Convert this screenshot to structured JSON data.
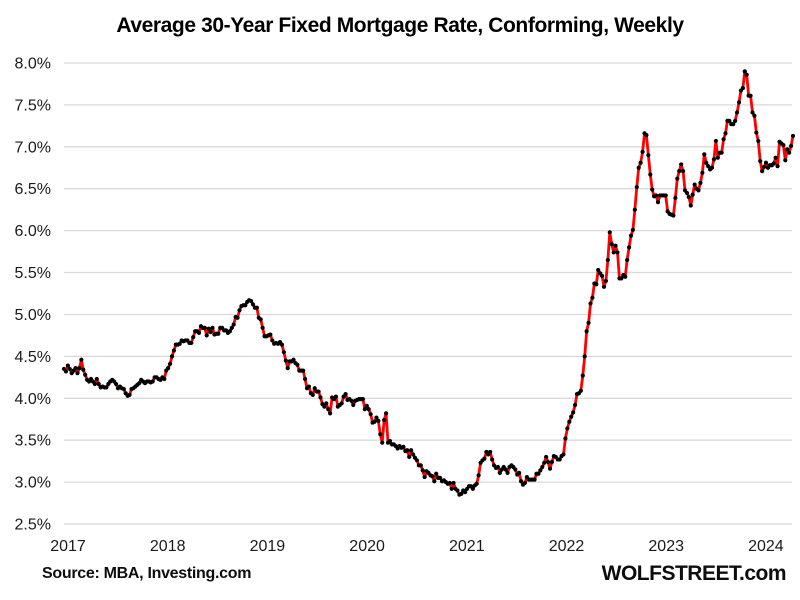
{
  "title": "Average 30-Year Fixed Mortgage Rate, Conforming, Weekly",
  "footer": {
    "source": "Source: MBA, Investing.com",
    "brand": "WOLFSTREET.com"
  },
  "chart_data": {
    "type": "line",
    "title": "Average 30-Year Fixed Mortgage Rate, Conforming, Weekly",
    "frequency": "weekly",
    "x_start_year": 2017,
    "x_tick_labels": [
      "2017",
      "2018",
      "2019",
      "2020",
      "2021",
      "2022",
      "2023",
      "2024"
    ],
    "ylim": [
      2.5,
      8.0
    ],
    "y_ticks": [
      8.0,
      7.5,
      7.0,
      6.5,
      6.0,
      5.5,
      5.0,
      4.5,
      4.0,
      3.5,
      3.0,
      2.5
    ],
    "y_tick_labels": [
      "8.0%",
      "7.5%",
      "7.0%",
      "6.5%",
      "6.0%",
      "5.5%",
      "5.0%",
      "4.5%",
      "4.0%",
      "3.5%",
      "3.0%",
      "2.5%"
    ],
    "grid": "horizontal",
    "gridline_color": "#d9d9d9",
    "legend": "none",
    "series": [
      {
        "name": "Average 30-year fixed mortgage rate",
        "color": "#ff0000",
        "marker_color": "#000000",
        "values": [
          4.35,
          4.32,
          4.39,
          4.35,
          4.3,
          4.33,
          4.36,
          4.3,
          4.36,
          4.46,
          4.34,
          4.28,
          4.22,
          4.2,
          4.23,
          4.2,
          4.17,
          4.23,
          4.17,
          4.13,
          4.14,
          4.13,
          4.13,
          4.17,
          4.2,
          4.22,
          4.2,
          4.17,
          4.12,
          4.14,
          4.12,
          4.11,
          4.06,
          4.03,
          4.04,
          4.11,
          4.12,
          4.14,
          4.16,
          4.18,
          4.22,
          4.2,
          4.18,
          4.2,
          4.2,
          4.19,
          4.2,
          4.25,
          4.25,
          4.23,
          4.22,
          4.25,
          4.23,
          4.33,
          4.36,
          4.41,
          4.5,
          4.57,
          4.64,
          4.64,
          4.65,
          4.69,
          4.68,
          4.69,
          4.69,
          4.66,
          4.66,
          4.73,
          4.8,
          4.8,
          4.78,
          4.86,
          4.84,
          4.84,
          4.75,
          4.83,
          4.79,
          4.84,
          4.76,
          4.77,
          4.77,
          4.84,
          4.84,
          4.81,
          4.81,
          4.78,
          4.8,
          4.84,
          4.88,
          4.97,
          4.96,
          5.05,
          5.1,
          5.11,
          5.11,
          5.15,
          5.17,
          5.16,
          5.12,
          5.08,
          5.08,
          4.96,
          4.94,
          4.84,
          4.74,
          4.74,
          4.75,
          4.76,
          4.69,
          4.65,
          4.66,
          4.65,
          4.67,
          4.64,
          4.55,
          4.45,
          4.36,
          4.44,
          4.44,
          4.46,
          4.42,
          4.4,
          4.33,
          4.33,
          4.33,
          4.23,
          4.12,
          4.14,
          4.06,
          4.04,
          4.12,
          4.08,
          4.08,
          4.01,
          3.93,
          3.9,
          3.94,
          3.87,
          3.82,
          4.01,
          3.99,
          4.02,
          3.9,
          3.92,
          3.94,
          4.02,
          4.05,
          3.98,
          3.99,
          3.97,
          3.92,
          3.97,
          3.98,
          3.99,
          3.99,
          3.99,
          3.87,
          3.91,
          3.87,
          3.81,
          3.71,
          3.72,
          3.77,
          3.73,
          3.57,
          3.47,
          3.74,
          3.82,
          3.47,
          3.49,
          3.45,
          3.45,
          3.43,
          3.4,
          3.43,
          3.41,
          3.42,
          3.37,
          3.38,
          3.3,
          3.38,
          3.33,
          3.29,
          3.26,
          3.2,
          3.2,
          3.14,
          3.06,
          3.13,
          3.11,
          3.08,
          3.07,
          3.01,
          3.1,
          3.05,
          3.05,
          3.01,
          3.02,
          3.0,
          2.98,
          2.99,
          2.92,
          2.99,
          2.92,
          2.9,
          2.85,
          2.86,
          2.9,
          2.88,
          2.92,
          2.95,
          2.95,
          2.92,
          2.96,
          2.98,
          3.08,
          3.23,
          3.26,
          3.28,
          3.36,
          3.33,
          3.36,
          3.27,
          3.2,
          3.17,
          3.18,
          3.11,
          3.15,
          3.18,
          3.15,
          3.11,
          3.18,
          3.2,
          3.18,
          3.15,
          3.09,
          3.11,
          3.01,
          2.97,
          2.99,
          3.06,
          3.03,
          3.03,
          3.03,
          3.03,
          3.1,
          3.1,
          3.14,
          3.18,
          3.23,
          3.3,
          3.24,
          3.16,
          3.24,
          3.31,
          3.3,
          3.27,
          3.27,
          3.31,
          3.33,
          3.52,
          3.64,
          3.72,
          3.78,
          3.83,
          3.92,
          4.05,
          4.06,
          4.09,
          4.27,
          4.5,
          4.8,
          4.9,
          5.13,
          5.2,
          5.37,
          5.36,
          5.53,
          5.49,
          5.46,
          5.33,
          5.4,
          5.65,
          5.98,
          5.84,
          5.74,
          5.82,
          5.74,
          5.43,
          5.43,
          5.47,
          5.45,
          5.65,
          5.8,
          5.94,
          6.01,
          6.25,
          6.52,
          6.75,
          6.81,
          6.94,
          7.16,
          7.14,
          6.9,
          6.67,
          6.49,
          6.41,
          6.42,
          6.34,
          6.42,
          6.42,
          6.42,
          6.42,
          6.23,
          6.2,
          6.19,
          6.18,
          6.39,
          6.62,
          6.71,
          6.79,
          6.71,
          6.48,
          6.45,
          6.4,
          6.3,
          6.43,
          6.55,
          6.5,
          6.48,
          6.57,
          6.69,
          6.91,
          6.81,
          6.77,
          6.73,
          6.75,
          6.85,
          7.07,
          6.87,
          6.93,
          6.93,
          7.09,
          7.16,
          7.31,
          7.31,
          7.27,
          7.27,
          7.31,
          7.41,
          7.53,
          7.67,
          7.7,
          7.9,
          7.86,
          7.61,
          7.61,
          7.41,
          7.37,
          7.17,
          7.07,
          6.83,
          6.71,
          6.76,
          6.81,
          6.75,
          6.78,
          6.78,
          6.8,
          6.87,
          6.77,
          7.06,
          7.04,
          7.02,
          6.84,
          6.97,
          6.93,
          7.01,
          7.13
        ]
      }
    ]
  }
}
